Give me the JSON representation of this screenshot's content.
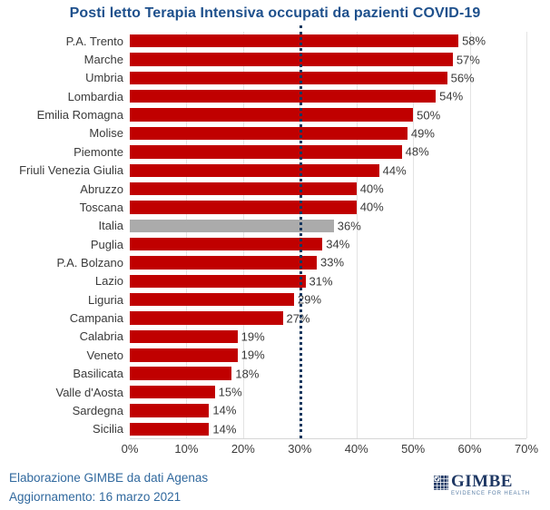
{
  "title": "Posti letto Terapia Intensiva occupati da pazienti COVID-19",
  "chart_data": {
    "type": "bar",
    "orientation": "horizontal",
    "title": "Posti letto Terapia Intensiva occupati da pazienti COVID-19",
    "categories": [
      "P.A. Trento",
      "Marche",
      "Umbria",
      "Lombardia",
      "Emilia Romagna",
      "Molise",
      "Piemonte",
      "Friuli Venezia Giulia",
      "Abruzzo",
      "Toscana",
      "Italia",
      "Puglia",
      "P.A. Bolzano",
      "Lazio",
      "Liguria",
      "Campania",
      "Calabria",
      "Veneto",
      "Basilicata",
      "Valle d'Aosta",
      "Sardegna",
      "Sicilia"
    ],
    "values": [
      58,
      57,
      56,
      54,
      50,
      49,
      48,
      44,
      40,
      40,
      36,
      34,
      33,
      31,
      29,
      27,
      19,
      19,
      18,
      15,
      14,
      14
    ],
    "value_suffix": "%",
    "xlim": [
      0,
      70
    ],
    "x_ticks": [
      "0%",
      "10%",
      "20%",
      "30%",
      "40%",
      "50%",
      "60%",
      "70%"
    ],
    "grid": "vertical light gray",
    "bar_color": "#C00000",
    "highlight_category": "Italia",
    "highlight_bar_color": "#ABABAB",
    "reference_line": {
      "value": 30,
      "style": "dotted",
      "color": "#17375E"
    }
  },
  "footer": {
    "line1": "Elaborazione GIMBE da dati Agenas",
    "line2": "Aggiornamento: 16 marzo 2021"
  },
  "logo": {
    "name": "GIMBE",
    "tagline": "EVIDENCE FOR HEALTH",
    "color": "#1F3864"
  }
}
